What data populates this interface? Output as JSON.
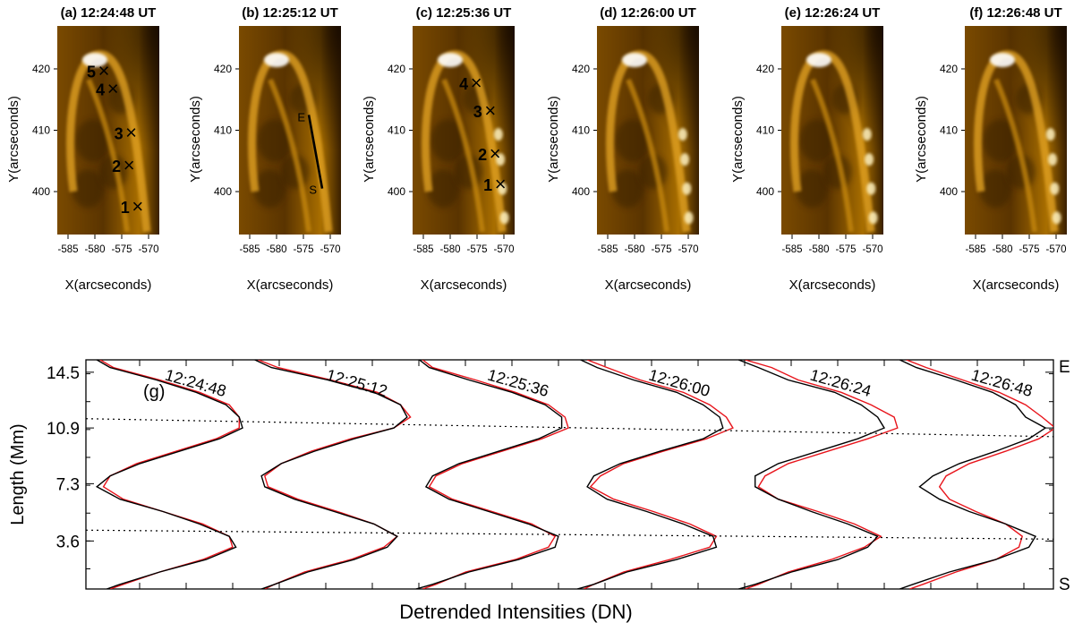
{
  "colors": {
    "background": "#ffffff",
    "axis": "#000000",
    "observed": "#000000",
    "fit": "#e8141b",
    "dotted": "#000000",
    "image_dark": "#1a0c00",
    "image_mid": "#a86e00",
    "image_bright": "#ffffff"
  },
  "chart_data": [
    {
      "type": "heatmap",
      "description_panels": [
        {
          "label": "(a) 12:24:48 UT",
          "markers": [
            {
              "n": "5",
              "x": -578.5,
              "y": 419.5
            },
            {
              "n": "4",
              "x": -576.8,
              "y": 416.6
            },
            {
              "n": "3",
              "x": -573.4,
              "y": 409.4
            },
            {
              "n": "2",
              "x": -573.8,
              "y": 404.1
            },
            {
              "n": "1",
              "x": -572.2,
              "y": 397.4
            }
          ],
          "slit": null
        },
        {
          "label": "(b) 12:25:12 UT",
          "markers": [],
          "slit": {
            "E": [
              -574.0,
              412.5
            ],
            "S": [
              -571.5,
              400.5
            ],
            "E_label": "E",
            "S_label": "S"
          }
        },
        {
          "label": "(c) 12:25:36 UT",
          "markers": [
            {
              "n": "4",
              "x": -575.3,
              "y": 417.5
            },
            {
              "n": "3",
              "x": -572.7,
              "y": 413.0
            },
            {
              "n": "2",
              "x": -571.8,
              "y": 406.0
            },
            {
              "n": "1",
              "x": -570.8,
              "y": 401.0
            }
          ],
          "slit": null
        },
        {
          "label": "(d) 12:26:00 UT",
          "markers": [],
          "slit": null
        },
        {
          "label": "(e) 12:26:24 UT",
          "markers": [],
          "slit": null
        },
        {
          "label": "(f) 12:26:48 UT",
          "markers": [],
          "slit": null
        }
      ],
      "xlabel": "X(arcseconds)",
      "ylabel": "Y(arcseconds)",
      "x_ticks": [
        "-585",
        "-580",
        "-575",
        "-570"
      ],
      "y_ticks": [
        "420",
        "410",
        "400"
      ],
      "xlim": [
        -587,
        -568
      ],
      "ylim": [
        393,
        427
      ]
    },
    {
      "type": "line",
      "panel_label": "(g)",
      "xlabel": "Detrended Intensities (DN)",
      "ylabel": "Length (Mm)",
      "y_ticks": [
        "14.5",
        "10.9",
        "7.3",
        "3.6"
      ],
      "y_tick_values": [
        14.5,
        10.9,
        7.3,
        3.6
      ],
      "ylim": [
        0.5,
        15.3
      ],
      "right_labels": {
        "top": "E",
        "bottom": "S"
      },
      "times": [
        "12:24:48",
        "12:25:12",
        "12:25:36",
        "12:26:00",
        "12:26:24",
        "12:26:48"
      ],
      "length_samples": [
        15.3,
        14.8,
        14.0,
        13.2,
        12.4,
        11.6,
        10.9,
        10.2,
        9.4,
        8.6,
        7.8,
        7.1,
        6.3,
        5.5,
        4.7,
        3.9,
        3.2,
        2.4,
        1.6,
        0.8,
        0.5
      ],
      "series": [
        {
          "name": "12:24:48",
          "offset": 0,
          "observed": [
            -2.3,
            -1.9,
            -0.5,
            0.7,
            1.6,
            2.0,
            2.1,
            1.4,
            0.2,
            -1.0,
            -1.9,
            -2.3,
            -1.6,
            -0.3,
            0.8,
            1.7,
            1.9,
            1.0,
            -0.4,
            -1.6,
            -2.0
          ],
          "fit": [
            -2.2,
            -1.8,
            -0.4,
            0.8,
            1.7,
            2.0,
            2.0,
            1.3,
            0.1,
            -1.1,
            -1.9,
            -2.1,
            -1.5,
            -0.3,
            0.9,
            1.7,
            1.8,
            0.9,
            -0.4,
            -1.5,
            -1.9
          ]
        },
        {
          "name": "12:25:12",
          "offset": 1,
          "observed": [
            -2.4,
            -1.9,
            -0.2,
            1.2,
            2.0,
            2.2,
            1.8,
            0.6,
            -0.6,
            -1.6,
            -2.2,
            -2.1,
            -1.2,
            0.0,
            1.2,
            1.9,
            1.6,
            0.6,
            -0.8,
            -1.8,
            -2.2
          ],
          "fit": [
            -2.3,
            -1.7,
            -0.1,
            1.3,
            2.0,
            2.3,
            1.8,
            0.5,
            -0.7,
            -1.6,
            -2.1,
            -2.0,
            -1.1,
            0.1,
            1.2,
            1.9,
            1.5,
            0.5,
            -0.9,
            -1.8,
            -2.1
          ]
        },
        {
          "name": "12:25:36",
          "offset": 2,
          "observed": [
            -2.3,
            -2.0,
            -0.8,
            0.5,
            1.5,
            2.0,
            2.0,
            1.3,
            0.1,
            -1.1,
            -1.9,
            -2.1,
            -1.4,
            -0.2,
            1.0,
            1.9,
            1.8,
            0.7,
            -0.8,
            -1.9,
            -2.4
          ],
          "fit": [
            -2.2,
            -1.9,
            -0.6,
            0.6,
            1.6,
            2.1,
            2.2,
            1.4,
            0.2,
            -1.0,
            -1.8,
            -2.0,
            -1.3,
            -0.1,
            1.1,
            1.8,
            1.6,
            0.6,
            -0.9,
            -1.8,
            -2.2
          ]
        },
        {
          "name": "12:26:00",
          "offset": 3,
          "observed": [
            -2.3,
            -1.8,
            -0.7,
            0.6,
            1.4,
            1.9,
            2.0,
            1.4,
            0.1,
            -1.1,
            -1.9,
            -2.1,
            -1.5,
            -0.3,
            0.8,
            1.7,
            1.8,
            0.6,
            -0.9,
            -1.9,
            -2.4
          ],
          "fit": [
            -2.1,
            -1.5,
            -0.5,
            0.8,
            1.6,
            2.1,
            2.3,
            1.5,
            0.2,
            -1.0,
            -1.7,
            -2.0,
            -1.3,
            -0.1,
            1.0,
            1.8,
            1.6,
            0.4,
            -1.0,
            -1.9,
            -2.2
          ]
        },
        {
          "name": "12:26:24",
          "offset": 4,
          "observed": [
            -2.4,
            -1.8,
            -0.9,
            0.5,
            1.3,
            1.8,
            2.0,
            1.2,
            0.0,
            -1.2,
            -1.9,
            -1.9,
            -1.2,
            -0.2,
            0.9,
            1.8,
            1.5,
            0.6,
            -0.8,
            -1.9,
            -2.4
          ],
          "fit": [
            -2.2,
            -1.4,
            -0.6,
            0.7,
            1.6,
            2.3,
            2.4,
            1.5,
            0.3,
            -0.9,
            -1.6,
            -1.8,
            -1.2,
            0.0,
            1.1,
            1.9,
            1.4,
            0.4,
            -0.9,
            -1.8,
            -2.2
          ]
        },
        {
          "name": "12:26:48",
          "offset": 5,
          "observed": [
            -2.4,
            -1.9,
            -0.7,
            0.4,
            1.1,
            1.4,
            2.0,
            1.5,
            0.5,
            -0.6,
            -1.4,
            -1.8,
            -1.2,
            -0.3,
            0.8,
            1.7,
            1.5,
            0.5,
            -0.9,
            -2.0,
            -2.4
          ],
          "fit": [
            -2.2,
            -1.6,
            -0.5,
            0.6,
            1.4,
            1.9,
            2.3,
            1.8,
            0.8,
            -0.3,
            -1.0,
            -1.2,
            -0.9,
            -0.1,
            0.8,
            1.3,
            1.2,
            0.5,
            -0.7,
            -1.7,
            -2.1
          ]
        }
      ],
      "dotted_lines": [
        {
          "from": [
            -0.5,
            11.5
          ],
          "to": [
            5.7,
            10.3
          ]
        },
        {
          "from": [
            -0.5,
            4.3
          ],
          "to": [
            5.7,
            3.7
          ]
        }
      ]
    }
  ]
}
